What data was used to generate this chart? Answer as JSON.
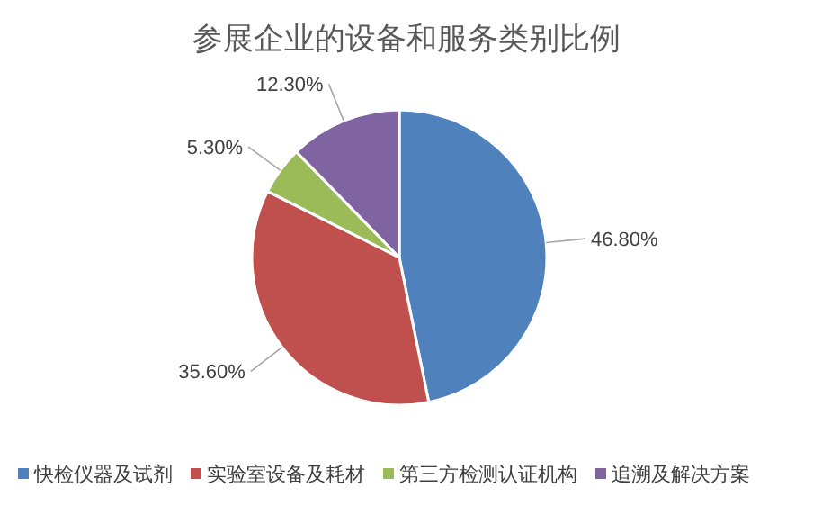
{
  "chart_data": {
    "type": "pie",
    "title": "参展企业的设备和服务类别比例",
    "categories": [
      "快检仪器及试剂",
      "实验室设备及耗材",
      "第三方检测认证机构",
      "追溯及解决方案"
    ],
    "values": [
      46.8,
      35.6,
      5.3,
      12.3
    ],
    "colors": [
      "#4f81bd",
      "#c0504d",
      "#9bbb59",
      "#8064a2"
    ],
    "value_labels": [
      "46.80%",
      "35.60%",
      "5.30%",
      "12.30%"
    ],
    "legend": "bottom"
  }
}
